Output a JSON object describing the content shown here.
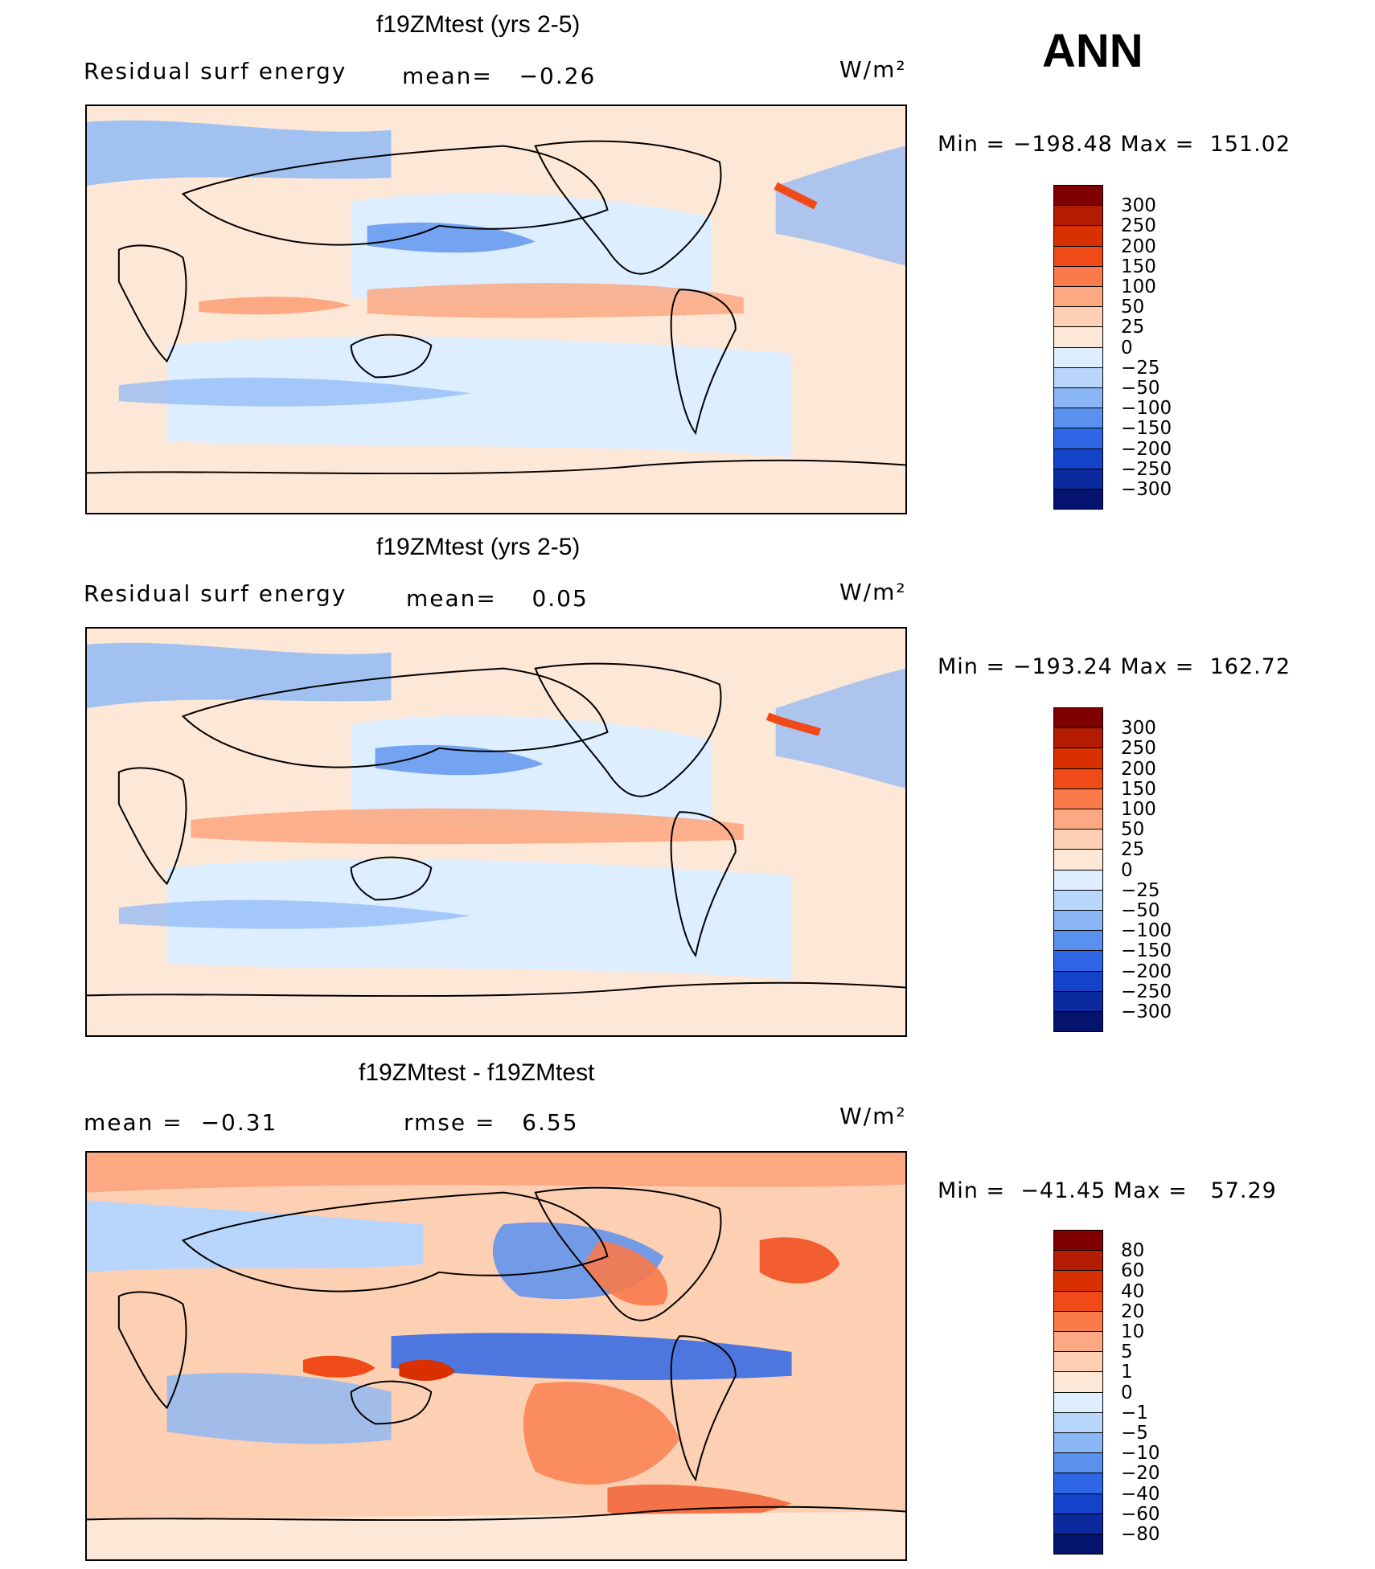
{
  "season": "ANN",
  "panels": [
    {
      "title": "f19ZMtest (yrs 2-5)",
      "left_text": "Residual surf energy",
      "center_text": "mean=   −0.26",
      "units": "W/m²",
      "min_max": "Min = −198.48 Max =  151.02",
      "map_name": "Residual surf energy global map (test)"
    },
    {
      "title": "f19ZMtest (yrs 2-5)",
      "left_text": "Residual surf energy",
      "center_text": "mean=    0.05",
      "units": "W/m²",
      "min_max": "Min = −193.24 Max =  162.72",
      "map_name": "Residual surf energy global map (control)"
    },
    {
      "title": "f19ZMtest - f19ZMtest",
      "left_text": "mean =  −0.31",
      "center_text": "rmse =   6.55",
      "units": "W/m²",
      "min_max": "Min =  −41.45 Max =   57.29",
      "map_name": "Difference global map"
    }
  ],
  "colorbars": {
    "abs": {
      "labels": [
        "300",
        "250",
        "200",
        "150",
        "100",
        "50",
        "25",
        "0",
        "−25",
        "−50",
        "−100",
        "−150",
        "−200",
        "−250",
        "−300"
      ],
      "colors": [
        "#7f0000",
        "#b31c00",
        "#d93000",
        "#f04a18",
        "#fa7a4a",
        "#fca882",
        "#fdd0b4",
        "#fde8d8",
        "#dceeff",
        "#b8d6fb",
        "#8ab6f6",
        "#5a90ee",
        "#2f66e6",
        "#1442c8",
        "#0a2a9e",
        "#04136e"
      ]
    },
    "diff": {
      "labels": [
        "80",
        "60",
        "40",
        "20",
        "10",
        "5",
        "1",
        "0",
        "−1",
        "−5",
        "−10",
        "−20",
        "−40",
        "−60",
        "−80"
      ],
      "colors": [
        "#7f0000",
        "#b31c00",
        "#d93000",
        "#f04a18",
        "#fa7a4a",
        "#fca882",
        "#fdd0b4",
        "#fde8d8",
        "#dceeff",
        "#b8d6fb",
        "#8ab6f6",
        "#5a90ee",
        "#2f66e6",
        "#1442c8",
        "#0a2a9e",
        "#04136e"
      ]
    }
  }
}
